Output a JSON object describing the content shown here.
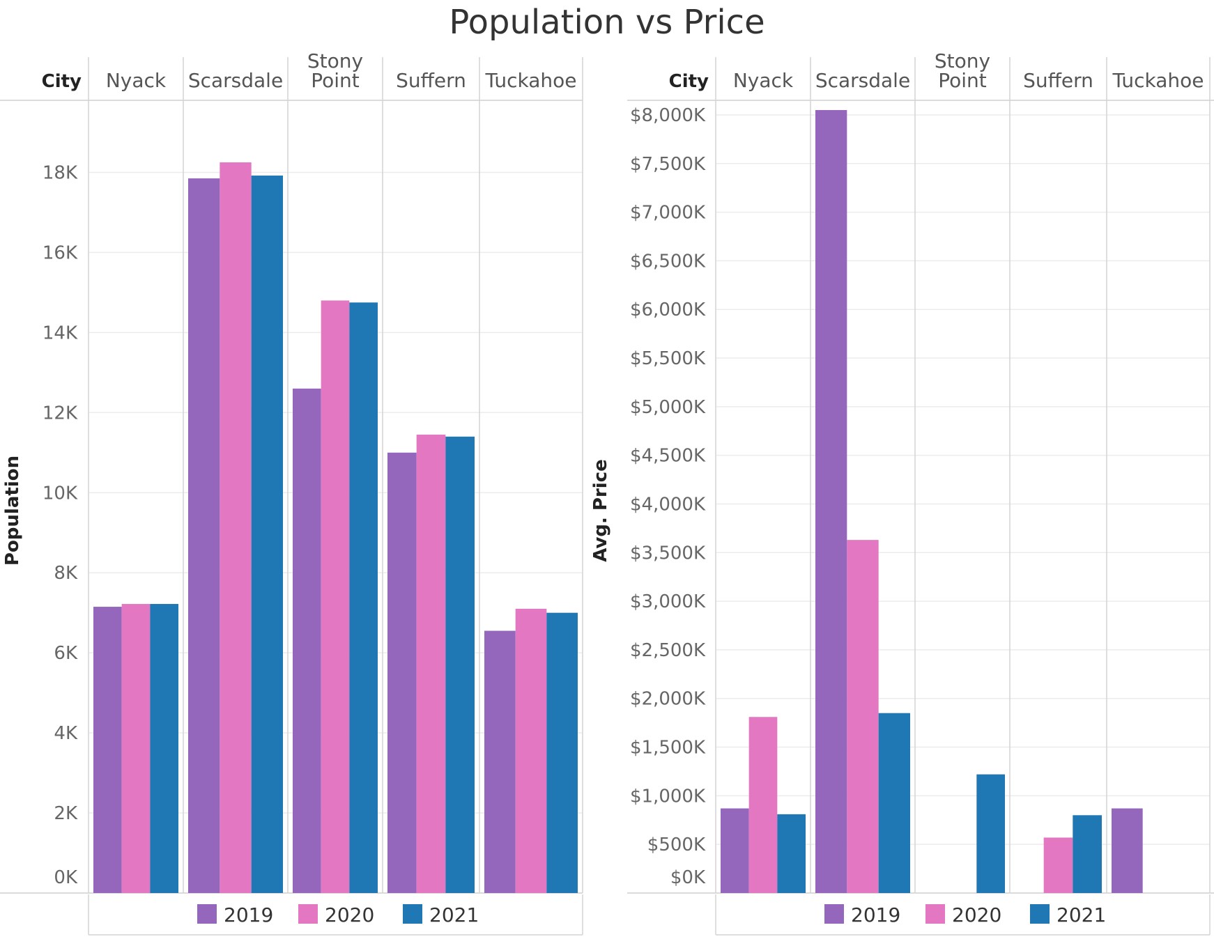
{
  "title": "Population vs Price",
  "colors": {
    "2019": "#9467bd",
    "2020": "#e377c2",
    "2021": "#1f77b4"
  },
  "chart_data": [
    {
      "type": "bar",
      "column_header": "City",
      "categories": [
        "Nyack",
        "Scarsdale",
        "Stony Point",
        "Suffern",
        "Tuckahoe"
      ],
      "ylabel": "Population",
      "ylim": [
        0,
        19800
      ],
      "yticks": [
        0,
        2000,
        4000,
        6000,
        8000,
        10000,
        12000,
        14000,
        16000,
        18000
      ],
      "ytick_labels": [
        "0K",
        "2K",
        "4K",
        "6K",
        "8K",
        "10K",
        "12K",
        "14K",
        "16K",
        "18K"
      ],
      "grid": true,
      "legend_position": "bottom",
      "series": [
        {
          "name": "2019",
          "values": [
            7150,
            17850,
            12600,
            11000,
            6550
          ]
        },
        {
          "name": "2020",
          "values": [
            7220,
            18250,
            14800,
            11450,
            7100
          ]
        },
        {
          "name": "2021",
          "values": [
            7220,
            17920,
            14750,
            11400,
            7000
          ]
        }
      ]
    },
    {
      "type": "bar",
      "column_header": "City",
      "categories": [
        "Nyack",
        "Scarsdale",
        "Stony Point",
        "Suffern",
        "Tuckahoe"
      ],
      "ylabel": "Avg. Price",
      "ylim": [
        0,
        8150
      ],
      "yticks": [
        0,
        500,
        1000,
        1500,
        2000,
        2500,
        3000,
        3500,
        4000,
        4500,
        5000,
        5500,
        6000,
        6500,
        7000,
        7500,
        8000
      ],
      "ytick_labels": [
        "$0K",
        "$500K",
        "$1,000K",
        "$1,500K",
        "$2,000K",
        "$2,500K",
        "$3,000K",
        "$3,500K",
        "$4,000K",
        "$4,500K",
        "$5,000K",
        "$5,500K",
        "$6,000K",
        "$6,500K",
        "$7,000K",
        "$7,500K",
        "$8,000K"
      ],
      "grid": true,
      "legend_position": "bottom",
      "series": [
        {
          "name": "2019",
          "values": [
            870,
            8050,
            null,
            null,
            870
          ]
        },
        {
          "name": "2020",
          "values": [
            1810,
            3630,
            null,
            570,
            null
          ]
        },
        {
          "name": "2021",
          "values": [
            810,
            1850,
            1220,
            800,
            null
          ]
        }
      ]
    }
  ]
}
